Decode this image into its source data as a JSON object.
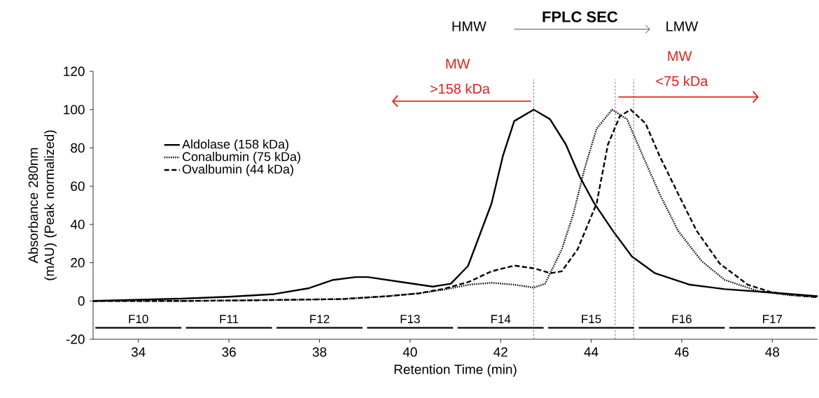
{
  "chart_data": {
    "type": "line",
    "title": "FPLC SEC",
    "xlabel": "Retention Time (min)",
    "ylabel": "Absorbance 280nm (mAU) (Peak normalized)",
    "annotations": [
      "HMW",
      "LMW",
      "MW",
      ">158 kDa",
      "MW",
      "<75 kDa",
      {
        "text": "F10",
        "x": 34,
        "y": -14
      },
      {
        "text": "F11",
        "x": 36,
        "y": -14
      },
      {
        "text": "F12",
        "x": 38,
        "y": -14
      },
      {
        "text": "F13",
        "x": 40,
        "y": -14
      },
      {
        "text": "F14",
        "x": 42,
        "y": -14
      },
      {
        "text": "F15",
        "x": 44,
        "y": -14
      },
      {
        "text": "F16",
        "x": 46,
        "y": -14
      },
      {
        "text": "F17",
        "x": 48,
        "y": -14
      }
    ],
    "xlim": [
      33,
      49
    ],
    "ylim": [
      -20,
      120
    ],
    "xticks": [
      34,
      36,
      38,
      40,
      42,
      44,
      46,
      48
    ],
    "yticks": [
      -20,
      0,
      20,
      40,
      60,
      80,
      100,
      120
    ],
    "legend": "top left",
    "series": [
      {
        "name": "Aldolase (158 kDa)",
        "color": "#000000",
        "line_style": "solid",
        "x": [
          33,
          34.94,
          36,
          37.0,
          37.77,
          38.3,
          38.8,
          39.07,
          39.84,
          40.5,
          40.9,
          41.28,
          41.8,
          42.05,
          42.3,
          42.73,
          43.09,
          43.44,
          43.75,
          44.06,
          44.48,
          44.9,
          45.4,
          46.18,
          46.95,
          47.99,
          49
        ],
        "values": [
          0,
          1.2,
          2.2,
          3.6,
          6.7,
          11,
          12.5,
          12.5,
          9.8,
          7.5,
          9,
          18.3,
          51,
          75.8,
          94,
          100,
          95,
          81.8,
          64.8,
          51.3,
          36.6,
          23.2,
          14.6,
          8.5,
          6.2,
          4.4,
          2.5
        ]
      },
      {
        "name": "Conalbumin (75 kDa)",
        "color": "#000000",
        "line_style": "dotted",
        "x": [
          33,
          35,
          37,
          38.5,
          39.5,
          40.2,
          40.77,
          41.3,
          41.8,
          42.3,
          42.73,
          42.98,
          43.35,
          43.6,
          43.86,
          44.12,
          44.46,
          44.79,
          45.14,
          45.51,
          45.92,
          46.44,
          46.95,
          47.72,
          48.4,
          49
        ],
        "values": [
          0,
          0,
          0.5,
          1,
          2.5,
          4,
          6,
          8.5,
          9.5,
          8.5,
          7,
          9,
          26.9,
          45,
          69.6,
          90,
          100,
          95,
          75.8,
          56,
          36.6,
          20.8,
          11,
          4.9,
          3,
          2
        ]
      },
      {
        "type": "line",
        "line_style": "solid",
        "color": "#000000",
        "x": [
          33.05,
          34.95,
          35,
          35.05,
          36.95,
          37,
          37.05,
          38.95,
          39,
          39.05,
          40.95,
          41,
          41.05,
          42.95,
          43,
          43.05,
          44.95,
          45,
          45.05,
          46.95,
          47,
          47.05,
          48.95
        ],
        "values": [
          -14,
          -14,
          null,
          -14,
          -14,
          null,
          -14,
          -14,
          null,
          -14,
          -14,
          null,
          -14,
          -14,
          null,
          -14,
          -14,
          null,
          -14,
          -14,
          null,
          -14,
          -14
        ]
      },
      {
        "name": "Ovalbumin (44 kDa)",
        "color": "#000000",
        "line_style": "dashed",
        "x": [
          33,
          35,
          37,
          38.5,
          39.5,
          40.2,
          40.77,
          41.3,
          41.8,
          42.3,
          42.75,
          43.1,
          43.35,
          43.7,
          44.12,
          44.37,
          44.63,
          44.87,
          45.2,
          45.51,
          45.92,
          46.33,
          46.84,
          47.46,
          48.0,
          48.5,
          49
        ],
        "values": [
          0,
          0,
          0.5,
          1,
          2.5,
          4,
          6.5,
          10,
          15.5,
          18.5,
          17,
          14.5,
          15.5,
          27,
          51,
          81.8,
          96.4,
          100,
          92.8,
          75.8,
          56,
          36.6,
          19.5,
          8.5,
          4.4,
          3,
          2
        ]
      }
    ],
    "ref_lines": [
      {
        "axis": "x",
        "value": 42.73,
        "color": "#7030a0",
        "line_style": "dashed"
      },
      {
        "axis": "x",
        "value": 44.53,
        "color": "#7030a0",
        "line_style": "dashed"
      },
      {
        "axis": "x",
        "value": 44.94,
        "color": "#7030a0",
        "line_style": "dashed"
      }
    ]
  }
}
